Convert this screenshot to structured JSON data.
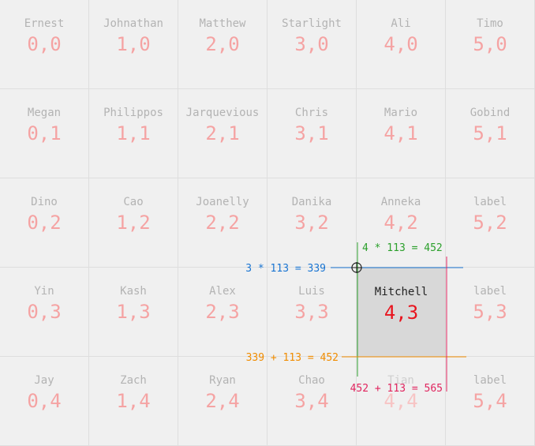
{
  "grid": {
    "columns": 6,
    "rows": 5,
    "cells": [
      {
        "name": "Ernest",
        "coord": "0,0"
      },
      {
        "name": "Johnathan",
        "coord": "1,0"
      },
      {
        "name": "Matthew",
        "coord": "2,0"
      },
      {
        "name": "Starlight",
        "coord": "3,0"
      },
      {
        "name": "Ali",
        "coord": "4,0"
      },
      {
        "name": "Timo",
        "coord": "5,0"
      },
      {
        "name": "Megan",
        "coord": "0,1"
      },
      {
        "name": "Philippos",
        "coord": "1,1"
      },
      {
        "name": "Jarquevious",
        "coord": "2,1"
      },
      {
        "name": "Chris",
        "coord": "3,1"
      },
      {
        "name": "Mario",
        "coord": "4,1"
      },
      {
        "name": "Gobind",
        "coord": "5,1"
      },
      {
        "name": "Dino",
        "coord": "0,2"
      },
      {
        "name": "Cao",
        "coord": "1,2"
      },
      {
        "name": "Joanelly",
        "coord": "2,2"
      },
      {
        "name": "Danika",
        "coord": "3,2"
      },
      {
        "name": "Anneka",
        "coord": "4,2"
      },
      {
        "name": "label",
        "coord": "5,2"
      },
      {
        "name": "Yin",
        "coord": "0,3"
      },
      {
        "name": "Kash",
        "coord": "1,3"
      },
      {
        "name": "Alex",
        "coord": "2,3"
      },
      {
        "name": "Luis",
        "coord": "3,3"
      },
      {
        "name": "Mitchell",
        "coord": "4,3",
        "selected": true
      },
      {
        "name": "label",
        "coord": "5,3"
      },
      {
        "name": "Jay",
        "coord": "0,4"
      },
      {
        "name": "Zach",
        "coord": "1,4"
      },
      {
        "name": "Ryan",
        "coord": "2,4"
      },
      {
        "name": "Chao",
        "coord": "3,4"
      },
      {
        "name": "Tian",
        "coord": "4,4",
        "faded": true
      },
      {
        "name": "label",
        "coord": "5,4"
      }
    ]
  },
  "annotations": {
    "top_label": "3 * 113 = 339",
    "left_label": "4 * 113 = 452",
    "bottom_label": "339 + 113 = 452",
    "right_label": "452 + 113 = 565"
  },
  "colors": {
    "top": "#1a75d2",
    "left": "#2ca02c",
    "bottom": "#f08c00",
    "right": "#e0245e"
  }
}
